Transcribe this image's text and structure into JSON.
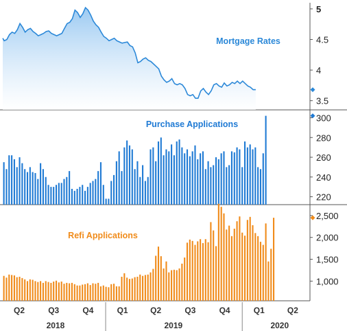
{
  "colors": {
    "mortgage": "#2b88d8",
    "mortgage_fill_top": "#b8d8f5",
    "purchase": "#1f7ad4",
    "refi": "#f08b1a",
    "axis": "#555555"
  },
  "chart_data": [
    {
      "type": "area",
      "title": "Mortgage Rates",
      "ylim": [
        3.35,
        5.1
      ],
      "yticks": [
        "3.5",
        "4",
        "4.5",
        "5"
      ],
      "ytick_values": [
        3.5,
        4,
        4.5,
        5
      ],
      "last_value": 3.68,
      "x_start": "2018-04-01",
      "x_end": "2020-06-30",
      "points": [
        [
          "2018-04-01",
          4.52
        ],
        [
          "2018-04-05",
          4.48
        ],
        [
          "2018-04-12",
          4.5
        ],
        [
          "2018-04-19",
          4.58
        ],
        [
          "2018-04-26",
          4.62
        ],
        [
          "2018-05-03",
          4.6
        ],
        [
          "2018-05-10",
          4.66
        ],
        [
          "2018-05-17",
          4.76
        ],
        [
          "2018-05-24",
          4.7
        ],
        [
          "2018-05-31",
          4.62
        ],
        [
          "2018-06-07",
          4.66
        ],
        [
          "2018-06-14",
          4.68
        ],
        [
          "2018-06-21",
          4.63
        ],
        [
          "2018-06-28",
          4.6
        ],
        [
          "2018-07-05",
          4.56
        ],
        [
          "2018-07-12",
          4.58
        ],
        [
          "2018-07-19",
          4.6
        ],
        [
          "2018-07-26",
          4.63
        ],
        [
          "2018-08-02",
          4.64
        ],
        [
          "2018-08-09",
          4.6
        ],
        [
          "2018-08-16",
          4.58
        ],
        [
          "2018-08-23",
          4.56
        ],
        [
          "2018-08-30",
          4.58
        ],
        [
          "2018-09-06",
          4.6
        ],
        [
          "2018-09-13",
          4.68
        ],
        [
          "2018-09-20",
          4.76
        ],
        [
          "2018-09-27",
          4.78
        ],
        [
          "2018-10-04",
          4.84
        ],
        [
          "2018-10-11",
          4.98
        ],
        [
          "2018-10-18",
          4.94
        ],
        [
          "2018-10-25",
          4.86
        ],
        [
          "2018-11-01",
          4.92
        ],
        [
          "2018-11-08",
          5.02
        ],
        [
          "2018-11-15",
          4.98
        ],
        [
          "2018-11-22",
          4.9
        ],
        [
          "2018-11-29",
          4.8
        ],
        [
          "2018-12-06",
          4.74
        ],
        [
          "2018-12-13",
          4.7
        ],
        [
          "2018-12-20",
          4.62
        ],
        [
          "2018-12-27",
          4.55
        ],
        [
          "2019-01-03",
          4.52
        ],
        [
          "2019-01-10",
          4.48
        ],
        [
          "2019-01-17",
          4.5
        ],
        [
          "2019-01-24",
          4.52
        ],
        [
          "2019-01-31",
          4.48
        ],
        [
          "2019-02-07",
          4.46
        ],
        [
          "2019-02-14",
          4.44
        ],
        [
          "2019-02-21",
          4.45
        ],
        [
          "2019-02-28",
          4.46
        ],
        [
          "2019-03-07",
          4.4
        ],
        [
          "2019-03-14",
          4.38
        ],
        [
          "2019-03-21",
          4.28
        ],
        [
          "2019-03-28",
          4.12
        ],
        [
          "2019-04-04",
          4.14
        ],
        [
          "2019-04-11",
          4.18
        ],
        [
          "2019-04-18",
          4.2
        ],
        [
          "2019-04-25",
          4.16
        ],
        [
          "2019-05-02",
          4.14
        ],
        [
          "2019-05-09",
          4.1
        ],
        [
          "2019-05-16",
          4.06
        ],
        [
          "2019-05-23",
          4.02
        ],
        [
          "2019-05-30",
          3.9
        ],
        [
          "2019-06-06",
          3.84
        ],
        [
          "2019-06-13",
          3.8
        ],
        [
          "2019-06-20",
          3.82
        ],
        [
          "2019-06-27",
          3.86
        ],
        [
          "2019-07-04",
          3.78
        ],
        [
          "2019-07-11",
          3.76
        ],
        [
          "2019-07-18",
          3.78
        ],
        [
          "2019-07-25",
          3.76
        ],
        [
          "2019-08-01",
          3.7
        ],
        [
          "2019-08-08",
          3.6
        ],
        [
          "2019-08-15",
          3.58
        ],
        [
          "2019-08-22",
          3.6
        ],
        [
          "2019-08-29",
          3.54
        ],
        [
          "2019-09-05",
          3.54
        ],
        [
          "2019-09-12",
          3.66
        ],
        [
          "2019-09-19",
          3.7
        ],
        [
          "2019-09-26",
          3.64
        ],
        [
          "2019-10-03",
          3.6
        ],
        [
          "2019-10-10",
          3.66
        ],
        [
          "2019-10-17",
          3.76
        ],
        [
          "2019-10-24",
          3.78
        ],
        [
          "2019-10-31",
          3.74
        ],
        [
          "2019-11-07",
          3.72
        ],
        [
          "2019-11-14",
          3.79
        ],
        [
          "2019-11-21",
          3.74
        ],
        [
          "2019-11-28",
          3.76
        ],
        [
          "2019-12-05",
          3.8
        ],
        [
          "2019-12-12",
          3.78
        ],
        [
          "2019-12-19",
          3.82
        ],
        [
          "2019-12-26",
          3.78
        ],
        [
          "2020-01-02",
          3.82
        ],
        [
          "2020-01-09",
          3.78
        ],
        [
          "2020-01-16",
          3.74
        ],
        [
          "2020-01-23",
          3.72
        ],
        [
          "2020-01-30",
          3.68
        ],
        [
          "2020-02-06",
          3.68
        ]
      ]
    },
    {
      "type": "bar",
      "title": "Purchase Applications",
      "ylim": [
        212,
        308
      ],
      "yticks": [
        "220",
        "240",
        "260",
        "280",
        "300"
      ],
      "ytick_values": [
        220,
        240,
        260,
        280,
        300
      ],
      "last_value": 302,
      "x_start": "2018-04-01",
      "x_end": "2020-06-30",
      "week_start": "2018-04-04",
      "values": [
        255,
        248,
        262,
        262,
        258,
        250,
        260,
        254,
        248,
        245,
        250,
        245,
        244,
        238,
        254,
        248,
        240,
        232,
        230,
        230,
        232,
        234,
        234,
        238,
        240,
        246,
        228,
        226,
        228,
        230,
        232,
        226,
        230,
        234,
        236,
        238,
        246,
        255,
        232,
        218,
        218,
        236,
        242,
        256,
        266,
        246,
        270,
        277,
        272,
        268,
        248,
        256,
        240,
        252,
        236,
        240,
        268,
        270,
        256,
        276,
        280,
        262,
        268,
        266,
        273,
        262,
        276,
        278,
        270,
        264,
        268,
        261,
        266,
        272,
        258,
        264,
        266,
        248,
        256,
        250,
        252,
        260,
        258,
        264,
        266,
        250,
        252,
        266,
        265,
        270,
        268,
        250,
        276,
        270,
        273,
        268,
        270,
        250,
        248,
        264,
        302
      ]
    },
    {
      "type": "bar",
      "title": "Refi Applications",
      "ylim": [
        550,
        2750
      ],
      "yticks": [
        "1,000",
        "1,500",
        "2,000",
        "2,500"
      ],
      "ytick_values": [
        1000,
        1500,
        2000,
        2500
      ],
      "last_value": 2450,
      "x_start": "2018-04-01",
      "x_end": "2020-06-30",
      "week_start": "2018-04-04",
      "values": [
        1120,
        1080,
        1150,
        1140,
        1130,
        1090,
        1100,
        1070,
        1040,
        1000,
        1040,
        1030,
        1000,
        980,
        1000,
        960,
        1000,
        980,
        960,
        990,
        1010,
        970,
        990,
        940,
        960,
        950,
        960,
        930,
        900,
        900,
        920,
        930,
        950,
        910,
        950,
        940,
        960,
        880,
        900,
        870,
        860,
        930,
        940,
        880,
        880,
        1100,
        1180,
        1080,
        1050,
        1060,
        1090,
        1100,
        1150,
        1120,
        1140,
        1150,
        1200,
        1280,
        1580,
        1790,
        1570,
        1290,
        1450,
        1200,
        1250,
        1260,
        1250,
        1290,
        1400,
        1540,
        1880,
        1950,
        1920,
        1830,
        1910,
        1960,
        1870,
        1960,
        1890,
        2350,
        2160,
        1800,
        2770,
        2700,
        2550,
        2180,
        2270,
        2030,
        2200,
        2370,
        2480,
        2110,
        2040,
        2400,
        2470,
        2280,
        2100,
        2030,
        1900,
        1830,
        2320,
        1450,
        1740,
        2450
      ]
    }
  ],
  "x_axis": {
    "quarters": [
      {
        "label": "Q2",
        "date": "2018-05-15"
      },
      {
        "label": "Q3",
        "date": "2018-08-15"
      },
      {
        "label": "Q4",
        "date": "2018-11-15"
      },
      {
        "label": "Q1",
        "date": "2019-02-15"
      },
      {
        "label": "Q2",
        "date": "2019-05-15"
      },
      {
        "label": "Q3",
        "date": "2019-08-15"
      },
      {
        "label": "Q4",
        "date": "2019-11-15"
      },
      {
        "label": "Q1",
        "date": "2020-02-15"
      },
      {
        "label": "Q2",
        "date": "2020-05-15"
      }
    ],
    "years": [
      {
        "label": "2018",
        "date": "2018-08-20"
      },
      {
        "label": "2019",
        "date": "2019-07-01"
      },
      {
        "label": "2020",
        "date": "2020-04-10"
      }
    ],
    "year_separators": [
      "2019-01-01",
      "2020-01-01"
    ]
  }
}
